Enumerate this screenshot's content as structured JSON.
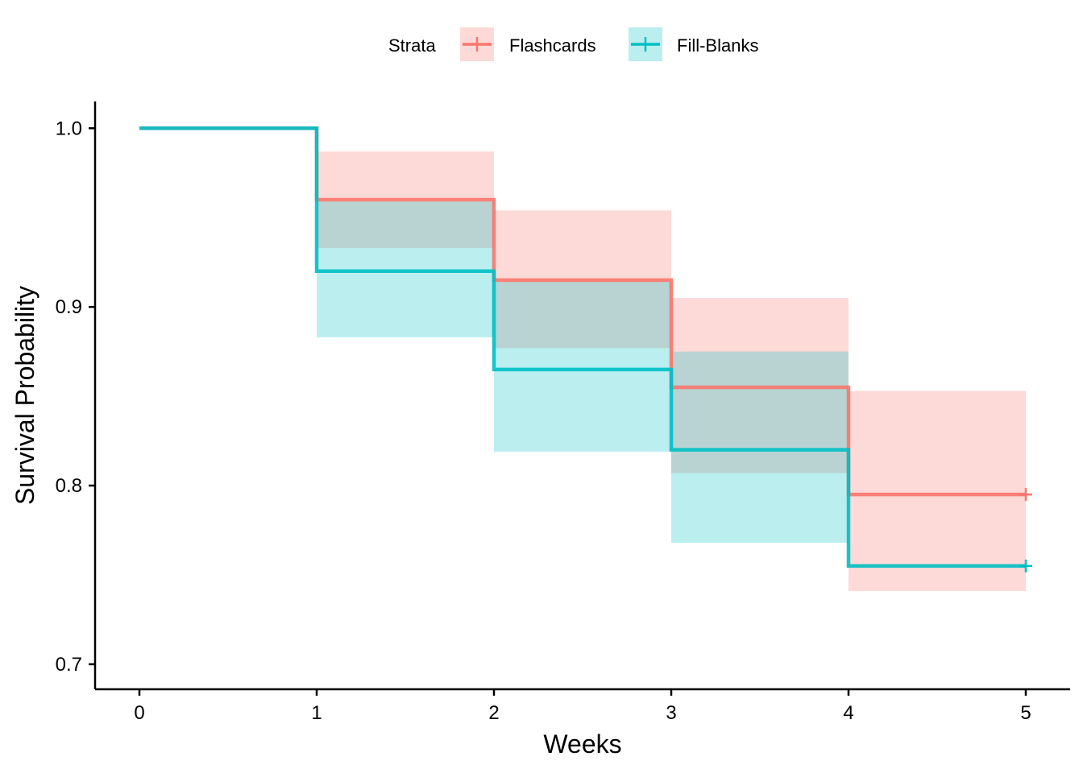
{
  "chart_data": {
    "type": "line",
    "subtype": "kaplan-meier-step",
    "xlabel": "Weeks",
    "ylabel": "Survival Probability",
    "xlim": [
      -0.25,
      5.25
    ],
    "ylim": [
      0.686,
      1.015
    ],
    "xticks": [
      0,
      1,
      2,
      3,
      4,
      5
    ],
    "yticks": [
      0.7,
      0.8,
      0.9,
      1.0
    ],
    "ytick_labels": [
      "0.7",
      "0.8",
      "0.9",
      "1.0"
    ],
    "grid": false,
    "legend": {
      "title": "Strata",
      "position": "top",
      "entries": [
        "Flashcards",
        "Fill-Blanks"
      ]
    },
    "series": [
      {
        "name": "Flashcards",
        "color": "#F8766D",
        "x": [
          0,
          1,
          2,
          3,
          4,
          5
        ],
        "survival": [
          1.0,
          0.96,
          0.915,
          0.855,
          0.795,
          0.795
        ],
        "ci_lower": [
          1.0,
          0.933,
          0.877,
          0.807,
          0.741,
          0.741
        ],
        "ci_upper": [
          1.0,
          0.987,
          0.954,
          0.905,
          0.853,
          0.853
        ],
        "censored_at": [
          5
        ]
      },
      {
        "name": "Fill-Blanks",
        "color": "#00BFC4",
        "x": [
          0,
          1,
          2,
          3,
          4,
          5
        ],
        "survival": [
          1.0,
          0.92,
          0.865,
          0.82,
          0.755,
          0.755
        ],
        "ci_lower": [
          1.0,
          0.883,
          0.819,
          0.768,
          0.755,
          0.755
        ],
        "ci_upper": [
          1.0,
          0.959,
          0.914,
          0.875,
          0.755,
          0.755
        ],
        "censored_at": [
          5
        ]
      }
    ]
  }
}
